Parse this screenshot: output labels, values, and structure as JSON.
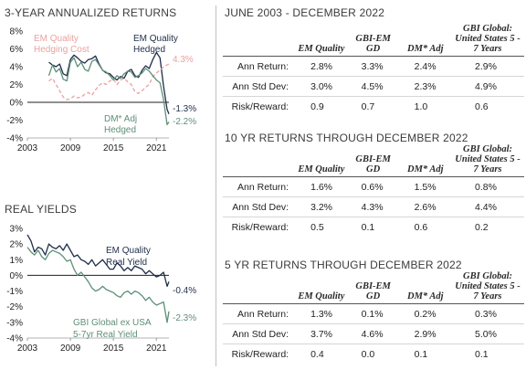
{
  "charts": [
    {
      "title": "3-YEAR ANNUALIZED RETURNS",
      "xticks": [
        "2003",
        "2009",
        "2015",
        "2021"
      ],
      "yticks": [
        "8%",
        "6%",
        "4%",
        "2%",
        "0%",
        "-2%",
        "-4%"
      ],
      "annotations": {
        "em_label_1": "EM Quality",
        "em_label_2": "Hedged",
        "hedge_label_1": "EM Quality",
        "hedge_label_2": "Hedging Cost",
        "dm_label_1": "DM* Adj",
        "dm_label_2": "Hedged",
        "hedge_end": "4.3%",
        "em_end": "-1.3%",
        "dm_end": "-2.2%"
      }
    },
    {
      "title": "REAL YIELDS",
      "xticks": [
        "2003",
        "2009",
        "2015",
        "2021"
      ],
      "yticks": [
        "3%",
        "2%",
        "1%",
        "0%",
        "-1%",
        "-2%",
        "-3%",
        "-4%"
      ],
      "annotations": {
        "em_label_1": "EM Quality",
        "em_label_2": "Real Yield",
        "gbi_label_1": "GBI Global ex USA",
        "gbi_label_2": "5-7yr Real Yield",
        "em_end": "-0.4%",
        "gbi_end": "-2.3%"
      }
    }
  ],
  "chart_data": [
    {
      "type": "line",
      "title": "3-YEAR ANNUALIZED RETURNS",
      "xlim": [
        2003,
        2022.75
      ],
      "ylim": [
        -4,
        8
      ],
      "series": [
        {
          "name": "EM Quality Hedged",
          "color": "#1f2d4a",
          "x": [
            2006,
            2006.5,
            2007,
            2007.5,
            2008,
            2008.5,
            2009,
            2009.5,
            2010,
            2010.5,
            2011,
            2011.5,
            2012,
            2012.5,
            2013,
            2013.5,
            2014,
            2014.5,
            2015,
            2015.5,
            2016,
            2016.5,
            2017,
            2017.5,
            2018,
            2018.5,
            2019,
            2019.5,
            2020,
            2020.5,
            2021,
            2021.5,
            2022,
            2022.5,
            2022.75
          ],
          "y": [
            4.5,
            4.2,
            4.0,
            4.3,
            3.2,
            3.0,
            4.8,
            5.3,
            5.0,
            4.6,
            4.4,
            4.8,
            4.9,
            5.2,
            4.3,
            3.6,
            3.3,
            3.2,
            2.8,
            2.5,
            2.9,
            2.7,
            3.5,
            3.7,
            3.0,
            2.8,
            3.6,
            4.1,
            3.8,
            4.8,
            5.6,
            5.0,
            1.8,
            -0.8,
            -1.3
          ]
        },
        {
          "name": "EM Quality Hedging Cost",
          "color": "#e8a2a0",
          "x": [
            2006,
            2006.5,
            2007,
            2007.5,
            2008,
            2008.5,
            2009,
            2009.5,
            2010,
            2010.5,
            2011,
            2011.5,
            2012,
            2012.5,
            2013,
            2013.5,
            2014,
            2014.5,
            2015,
            2015.5,
            2016,
            2016.5,
            2017,
            2017.5,
            2018,
            2018.5,
            2019,
            2019.5,
            2020,
            2020.5,
            2021,
            2021.5,
            2022,
            2022.5,
            2022.75
          ],
          "y": [
            2.4,
            2.7,
            2.0,
            1.3,
            0.6,
            0.3,
            0.4,
            0.7,
            0.5,
            0.6,
            0.9,
            1.1,
            0.8,
            1.4,
            1.9,
            2.2,
            2.0,
            2.4,
            2.6,
            2.0,
            2.5,
            2.7,
            2.3,
            2.0,
            1.2,
            1.0,
            1.3,
            1.7,
            2.0,
            2.9,
            3.3,
            3.6,
            4.0,
            4.2,
            4.3
          ]
        },
        {
          "name": "DM* Adj Hedged",
          "color": "#5e8f78",
          "x": [
            2006,
            2006.5,
            2007,
            2007.5,
            2008,
            2008.5,
            2009,
            2009.5,
            2010,
            2010.5,
            2011,
            2011.5,
            2012,
            2012.5,
            2013,
            2013.5,
            2014,
            2014.5,
            2015,
            2015.5,
            2016,
            2016.5,
            2017,
            2017.5,
            2018,
            2018.5,
            2019,
            2019.5,
            2020,
            2020.5,
            2021,
            2021.5,
            2022,
            2022.5,
            2022.75
          ],
          "y": [
            3.0,
            4.2,
            3.4,
            3.8,
            2.6,
            2.4,
            4.5,
            5.0,
            4.0,
            4.5,
            3.7,
            3.5,
            4.6,
            4.8,
            4.2,
            3.6,
            3.4,
            3.0,
            2.5,
            3.0,
            2.7,
            3.2,
            3.5,
            3.4,
            2.8,
            3.0,
            3.3,
            3.8,
            3.5,
            3.0,
            2.5,
            2.2,
            0.3,
            -2.5,
            -2.2
          ]
        }
      ]
    },
    {
      "type": "line",
      "title": "REAL YIELDS",
      "xlim": [
        2003,
        2022.75
      ],
      "ylim": [
        -4,
        3
      ],
      "series": [
        {
          "name": "EM Quality Real Yield",
          "color": "#1f2d4a",
          "x": [
            2003,
            2003.5,
            2004,
            2004.5,
            2005,
            2005.5,
            2006,
            2006.5,
            2007,
            2007.5,
            2008,
            2008.5,
            2009,
            2009.5,
            2010,
            2010.5,
            2011,
            2011.5,
            2012,
            2012.5,
            2013,
            2013.5,
            2014,
            2014.5,
            2015,
            2015.5,
            2016,
            2016.5,
            2017,
            2017.5,
            2018,
            2018.5,
            2019,
            2019.5,
            2020,
            2020.5,
            2021,
            2021.5,
            2022,
            2022.5,
            2022.75
          ],
          "y": [
            2.6,
            2.2,
            1.5,
            1.8,
            1.7,
            1.3,
            2.0,
            1.8,
            1.7,
            1.9,
            1.6,
            2.0,
            1.6,
            1.2,
            1.3,
            1.0,
            0.9,
            0.7,
            1.0,
            0.6,
            0.8,
            1.0,
            0.7,
            0.4,
            0.4,
            0.8,
            0.6,
            0.3,
            0.5,
            0.3,
            0.6,
            0.5,
            0.4,
            0.1,
            0.3,
            0.1,
            -0.1,
            0.0,
            0.2,
            -0.7,
            -0.4
          ]
        },
        {
          "name": "GBI Global ex USA 5-7yr Real Yield",
          "color": "#5e8f78",
          "x": [
            2003,
            2003.5,
            2004,
            2004.5,
            2005,
            2005.5,
            2006,
            2006.5,
            2007,
            2007.5,
            2008,
            2008.5,
            2009,
            2009.5,
            2010,
            2010.5,
            2011,
            2011.5,
            2012,
            2012.5,
            2013,
            2013.5,
            2014,
            2014.5,
            2015,
            2015.5,
            2016,
            2016.5,
            2017,
            2017.5,
            2018,
            2018.5,
            2019,
            2019.5,
            2020,
            2020.5,
            2021,
            2021.5,
            2022,
            2022.5,
            2022.75
          ],
          "y": [
            1.8,
            1.5,
            1.3,
            1.6,
            1.2,
            1.0,
            1.4,
            1.6,
            1.5,
            1.4,
            1.2,
            0.9,
            1.0,
            0.4,
            0.0,
            0.2,
            -0.1,
            -0.4,
            -0.8,
            -1.0,
            -0.9,
            -0.7,
            -0.9,
            -1.0,
            -1.1,
            -1.3,
            -1.4,
            -1.1,
            -1.0,
            -1.2,
            -1.0,
            -1.1,
            -1.3,
            -1.6,
            -1.4,
            -1.7,
            -1.9,
            -1.8,
            -1.7,
            -3.0,
            -2.3
          ]
        }
      ]
    },
    {
      "type": "table",
      "title": "JUNE 2003 - DECEMBER 2022",
      "columns": [
        "EM Quality",
        "GBI-EM GD",
        "DM* Adj",
        "GBI Global: United States 5 - 7 Years"
      ],
      "rows": [
        {
          "label": "Ann Return:",
          "values": [
            "2.8%",
            "3.3%",
            "2.4%",
            "2.9%"
          ]
        },
        {
          "label": "Ann Std Dev:",
          "values": [
            "3.0%",
            "4.5%",
            "2.3%",
            "4.9%"
          ]
        },
        {
          "label": "Risk/Reward:",
          "values": [
            "0.9",
            "0.7",
            "1.0",
            "0.6"
          ]
        }
      ]
    },
    {
      "type": "table",
      "title": "10 YR RETURNS THROUGH DECEMBER 2022",
      "columns": [
        "EM Quality",
        "GBI-EM GD",
        "DM* Adj",
        "GBI Global: United States 5 - 7 Years"
      ],
      "rows": [
        {
          "label": "Ann Return:",
          "values": [
            "1.6%",
            "0.6%",
            "1.5%",
            "0.8%"
          ]
        },
        {
          "label": "Ann Std Dev:",
          "values": [
            "3.2%",
            "4.3%",
            "2.6%",
            "4.4%"
          ]
        },
        {
          "label": "Risk/Reward:",
          "values": [
            "0.5",
            "0.1",
            "0.6",
            "0.2"
          ]
        }
      ]
    },
    {
      "type": "table",
      "title": "5 YR RETURNS THROUGH DECEMBER 2022",
      "columns": [
        "EM Quality",
        "GBI-EM GD",
        "DM* Adj",
        "GBI Global: United States 5 - 7 Years"
      ],
      "rows": [
        {
          "label": "Ann Return:",
          "values": [
            "1.3%",
            "0.1%",
            "0.2%",
            "0.3%"
          ]
        },
        {
          "label": "Ann Std Dev:",
          "values": [
            "3.7%",
            "4.6%",
            "2.9%",
            "5.0%"
          ]
        },
        {
          "label": "Risk/Reward:",
          "values": [
            "0.4",
            "0.0",
            "0.1",
            "0.1"
          ]
        }
      ]
    }
  ]
}
